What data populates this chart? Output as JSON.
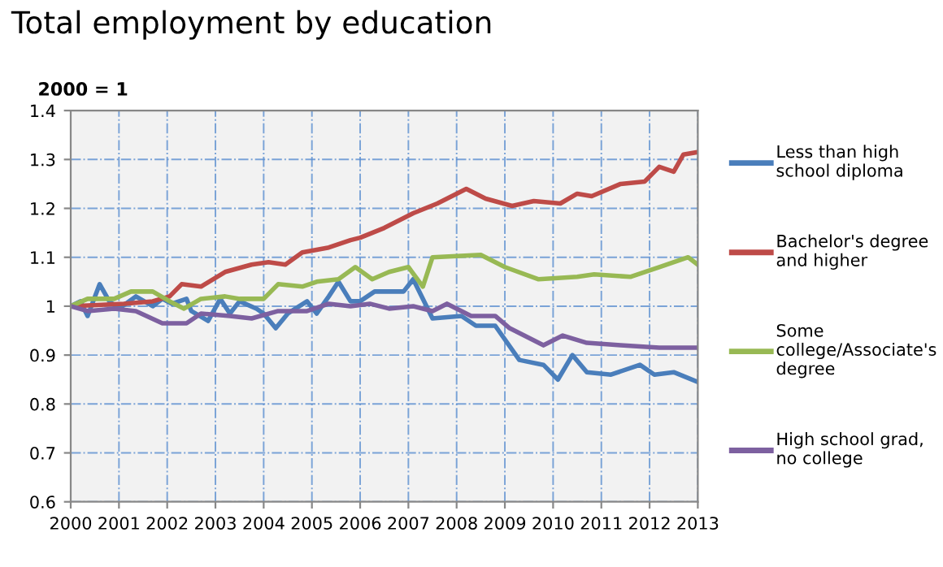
{
  "chart_data": {
    "type": "line",
    "title": "Total employment by education",
    "ylabel": "2000 = 1",
    "xlim": [
      2000,
      2013
    ],
    "xticks": [
      2000,
      2001,
      2002,
      2003,
      2004,
      2005,
      2006,
      2007,
      2008,
      2009,
      2010,
      2011,
      2012,
      2013
    ],
    "ylim": [
      0.6,
      1.4
    ],
    "yticks": [
      0.6,
      0.7,
      0.8,
      0.9,
      1,
      1.1,
      1.2,
      1.3,
      1.4
    ],
    "grid": true,
    "legend": "right",
    "marker": "none",
    "line_style": "solid",
    "series": [
      {
        "name": "Less than high\nschool diploma",
        "color": "#4a7ebb",
        "x": [
          2000,
          2000.2,
          2000.35,
          2000.6,
          2000.8,
          2001.0,
          2001.35,
          2001.7,
          2001.9,
          2002.1,
          2002.4,
          2002.5,
          2002.85,
          2003.1,
          2003.3,
          2003.5,
          2003.85,
          2004.0,
          2004.25,
          2004.5,
          2004.9,
          2005.1,
          2005.35,
          2005.55,
          2005.8,
          2006.0,
          2006.3,
          2006.6,
          2006.9,
          2007.1,
          2007.5,
          2008.1,
          2008.4,
          2008.8,
          2009.3,
          2009.8,
          2010.1,
          2010.4,
          2010.7,
          2011.2,
          2011.8,
          2012.1,
          2012.5,
          2013
        ],
        "values": [
          1.0,
          1.01,
          0.98,
          1.045,
          1.01,
          0.995,
          1.02,
          1.0,
          1.015,
          1.005,
          1.015,
          0.99,
          0.97,
          1.015,
          0.985,
          1.01,
          0.995,
          0.985,
          0.955,
          0.985,
          1.01,
          0.985,
          1.02,
          1.05,
          1.01,
          1.01,
          1.03,
          1.03,
          1.03,
          1.055,
          0.975,
          0.98,
          0.96,
          0.96,
          0.89,
          0.88,
          0.85,
          0.9,
          0.865,
          0.86,
          0.88,
          0.86,
          0.865,
          0.845
        ]
      },
      {
        "name": "Bachelor's degree\nand higher",
        "color": "#be4b48",
        "x": [
          2000,
          2001.1,
          2001.7,
          2002.05,
          2002.3,
          2002.7,
          2003.2,
          2003.75,
          2004.1,
          2004.45,
          2004.8,
          2005.35,
          2005.8,
          2006.0,
          2006.5,
          2007.1,
          2007.6,
          2008.2,
          2008.6,
          2009.15,
          2009.6,
          2010.15,
          2010.5,
          2010.8,
          2011.4,
          2011.9,
          2012.2,
          2012.5,
          2012.7,
          2013
        ],
        "values": [
          1.0,
          1.005,
          1.01,
          1.02,
          1.045,
          1.04,
          1.07,
          1.085,
          1.09,
          1.085,
          1.11,
          1.12,
          1.135,
          1.14,
          1.16,
          1.19,
          1.21,
          1.24,
          1.22,
          1.205,
          1.215,
          1.21,
          1.23,
          1.225,
          1.25,
          1.255,
          1.285,
          1.275,
          1.31,
          1.315
        ]
      },
      {
        "name": "Some\ncollege/Associate's\ndegree",
        "color": "#98b954",
        "x": [
          2000,
          2000.35,
          2000.9,
          2001.25,
          2001.7,
          2002.05,
          2002.35,
          2002.7,
          2003.2,
          2003.5,
          2004.0,
          2004.3,
          2004.8,
          2005.1,
          2005.55,
          2005.9,
          2006.25,
          2006.6,
          2007.0,
          2007.3,
          2007.5,
          2008.5,
          2009.0,
          2009.7,
          2010.5,
          2010.85,
          2011.6,
          2012.2,
          2012.8,
          2013
        ],
        "values": [
          1.0,
          1.015,
          1.015,
          1.03,
          1.03,
          1.01,
          0.995,
          1.015,
          1.02,
          1.015,
          1.015,
          1.045,
          1.04,
          1.05,
          1.055,
          1.08,
          1.055,
          1.07,
          1.08,
          1.04,
          1.1,
          1.105,
          1.08,
          1.055,
          1.06,
          1.065,
          1.06,
          1.08,
          1.1,
          1.085
        ]
      },
      {
        "name": "High school grad,\nno college",
        "color": "#7d60a0",
        "x": [
          2000,
          2000.35,
          2000.9,
          2001.35,
          2001.9,
          2002.4,
          2002.7,
          2003.3,
          2003.75,
          2004.3,
          2004.9,
          2005.35,
          2005.8,
          2006.2,
          2006.6,
          2007.1,
          2007.5,
          2007.8,
          2008.3,
          2008.8,
          2009.1,
          2009.8,
          2010.2,
          2010.7,
          2011.4,
          2012.2,
          2013
        ],
        "values": [
          1.0,
          0.99,
          0.995,
          0.99,
          0.965,
          0.965,
          0.985,
          0.98,
          0.975,
          0.99,
          0.99,
          1.005,
          1.0,
          1.005,
          0.995,
          1.0,
          0.99,
          1.005,
          0.98,
          0.98,
          0.955,
          0.92,
          0.94,
          0.925,
          0.92,
          0.915,
          0.915
        ]
      }
    ]
  }
}
